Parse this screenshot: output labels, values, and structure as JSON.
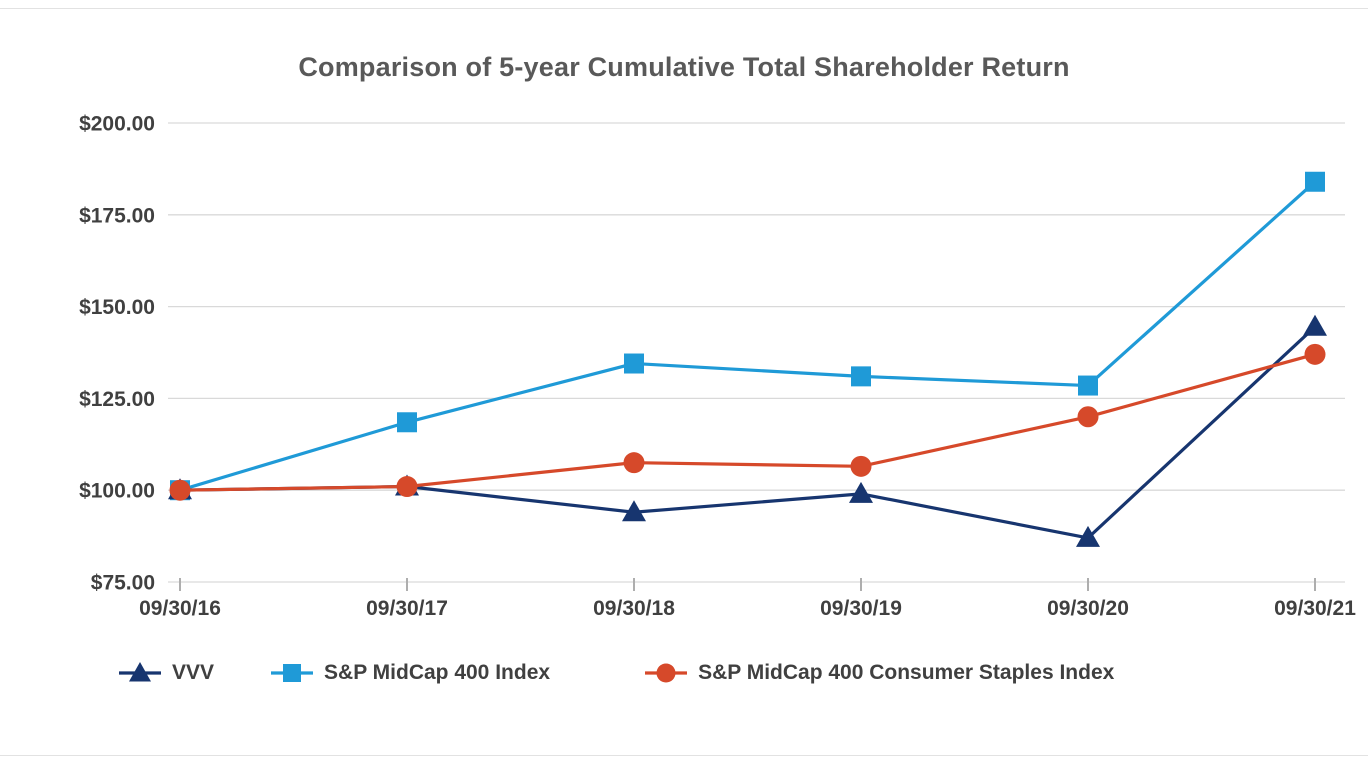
{
  "page": {
    "title": "Comparison of 5-year Cumulative Total Shareholder Return"
  },
  "chart_data": {
    "type": "line",
    "title": "Comparison of 5-year Cumulative Total Shareholder Return",
    "categories": [
      "09/30/16",
      "09/30/17",
      "09/30/18",
      "09/30/19",
      "09/30/20",
      "09/30/21"
    ],
    "series": [
      {
        "name": "VVV",
        "marker": "triangle",
        "color": "#17356f",
        "values": [
          100.0,
          101.0,
          94.0,
          99.0,
          87.0,
          144.5
        ]
      },
      {
        "name": "S&P MidCap 400 Index",
        "marker": "square",
        "color": "#1f9ad7",
        "values": [
          100.0,
          118.5,
          134.5,
          131.0,
          128.5,
          184.0
        ]
      },
      {
        "name": "S&P MidCap 400 Consumer Staples Index",
        "marker": "circle",
        "color": "#d6492a",
        "values": [
          100.0,
          101.0,
          107.5,
          106.5,
          120.0,
          137.0
        ]
      }
    ],
    "ylim": [
      75,
      200
    ],
    "ytick_step": 25,
    "ytick_labels": [
      "$75.00",
      "$100.00",
      "$125.00",
      "$150.00",
      "$175.00",
      "$200.00"
    ],
    "xlabel": "",
    "ylabel": "",
    "grid": true,
    "legend_position": "bottom",
    "draw_order": [
      1,
      0,
      2
    ],
    "colors": {
      "grid": "#d9d9d9",
      "axis_text": "#404040",
      "tick": "#aeaeae",
      "frame": "#e2e2e2",
      "title": "#595959"
    }
  }
}
